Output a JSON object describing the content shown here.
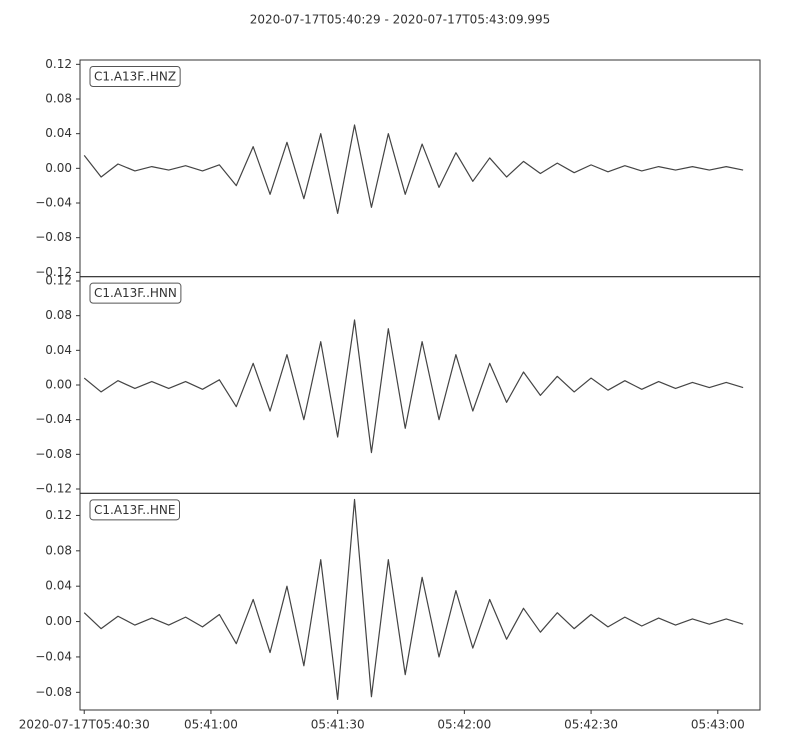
{
  "title": "2020-07-17T05:40:29  -  2020-07-17T05:43:09.995",
  "chart_data": [
    {
      "type": "line",
      "x": [
        "2020-07-17T05:40:30",
        "2020-07-17T05:40:34",
        "2020-07-17T05:40:38",
        "2020-07-17T05:40:42",
        "2020-07-17T05:40:46",
        "2020-07-17T05:40:50",
        "2020-07-17T05:40:54",
        "2020-07-17T05:40:58",
        "2020-07-17T05:41:02",
        "2020-07-17T05:41:06",
        "2020-07-17T05:41:10",
        "2020-07-17T05:41:14",
        "2020-07-17T05:41:18",
        "2020-07-17T05:41:22",
        "2020-07-17T05:41:26",
        "2020-07-17T05:41:30",
        "2020-07-17T05:41:34",
        "2020-07-17T05:41:38",
        "2020-07-17T05:41:42",
        "2020-07-17T05:41:46",
        "2020-07-17T05:41:50",
        "2020-07-17T05:41:54",
        "2020-07-17T05:41:58",
        "2020-07-17T05:42:02",
        "2020-07-17T05:42:06",
        "2020-07-17T05:42:10",
        "2020-07-17T05:42:14",
        "2020-07-17T05:42:18",
        "2020-07-17T05:42:22",
        "2020-07-17T05:42:26",
        "2020-07-17T05:42:30",
        "2020-07-17T05:42:34",
        "2020-07-17T05:42:38",
        "2020-07-17T05:42:42",
        "2020-07-17T05:42:46",
        "2020-07-17T05:42:50",
        "2020-07-17T05:42:54",
        "2020-07-17T05:42:58",
        "2020-07-17T05:43:02",
        "2020-07-17T05:43:06"
      ],
      "series": [
        {
          "name": "C1.A13F..HNZ",
          "color": "#444444",
          "values": [
            0.015,
            -0.01,
            0.005,
            -0.003,
            0.002,
            -0.002,
            0.003,
            -0.003,
            0.004,
            -0.02,
            0.025,
            -0.03,
            0.03,
            -0.035,
            0.04,
            -0.052,
            0.05,
            -0.045,
            0.04,
            -0.03,
            0.028,
            -0.022,
            0.018,
            -0.015,
            0.012,
            -0.01,
            0.008,
            -0.006,
            0.006,
            -0.005,
            0.004,
            -0.004,
            0.003,
            -0.003,
            0.002,
            -0.002,
            0.002,
            -0.002,
            0.002,
            -0.002
          ]
        }
      ],
      "xlim": [
        "2020-07-17T05:40:29",
        "2020-07-17T05:43:09.995"
      ],
      "ylim": [
        -0.125,
        0.125
      ],
      "yticks": [
        {
          "value": -0.12,
          "label": "−0.12"
        },
        {
          "value": -0.08,
          "label": "−0.08"
        },
        {
          "value": -0.04,
          "label": "−0.04"
        },
        {
          "value": 0,
          "label": "0.00"
        },
        0.04,
        0.08,
        0.12
      ]
    },
    {
      "type": "line",
      "x": [
        "2020-07-17T05:40:30",
        "2020-07-17T05:40:34",
        "2020-07-17T05:40:38",
        "2020-07-17T05:40:42",
        "2020-07-17T05:40:46",
        "2020-07-17T05:40:50",
        "2020-07-17T05:40:54",
        "2020-07-17T05:40:58",
        "2020-07-17T05:41:02",
        "2020-07-17T05:41:06",
        "2020-07-17T05:41:10",
        "2020-07-17T05:41:14",
        "2020-07-17T05:41:18",
        "2020-07-17T05:41:22",
        "2020-07-17T05:41:26",
        "2020-07-17T05:41:30",
        "2020-07-17T05:41:34",
        "2020-07-17T05:41:38",
        "2020-07-17T05:41:42",
        "2020-07-17T05:41:46",
        "2020-07-17T05:41:50",
        "2020-07-17T05:41:54",
        "2020-07-17T05:41:58",
        "2020-07-17T05:42:02",
        "2020-07-17T05:42:06",
        "2020-07-17T05:42:10",
        "2020-07-17T05:42:14",
        "2020-07-17T05:42:18",
        "2020-07-17T05:42:22",
        "2020-07-17T05:42:26",
        "2020-07-17T05:42:30",
        "2020-07-17T05:42:34",
        "2020-07-17T05:42:38",
        "2020-07-17T05:42:42",
        "2020-07-17T05:42:46",
        "2020-07-17T05:42:50",
        "2020-07-17T05:42:54",
        "2020-07-17T05:42:58",
        "2020-07-17T05:43:02",
        "2020-07-17T05:43:06"
      ],
      "series": [
        {
          "name": "C1.A13F..HNN",
          "color": "#444444",
          "values": [
            0.008,
            -0.008,
            0.005,
            -0.004,
            0.004,
            -0.004,
            0.004,
            -0.005,
            0.006,
            -0.025,
            0.025,
            -0.03,
            0.035,
            -0.04,
            0.05,
            -0.06,
            0.075,
            -0.078,
            0.065,
            -0.05,
            0.05,
            -0.04,
            0.035,
            -0.03,
            0.025,
            -0.02,
            0.015,
            -0.012,
            0.01,
            -0.008,
            0.008,
            -0.006,
            0.005,
            -0.005,
            0.004,
            -0.004,
            0.003,
            -0.003,
            0.003,
            -0.003
          ]
        }
      ],
      "xlim": [
        "2020-07-17T05:40:29",
        "2020-07-17T05:43:09.995"
      ],
      "ylim": [
        -0.125,
        0.125
      ],
      "yticks": [
        {
          "value": -0.12,
          "label": "−0.12"
        },
        {
          "value": -0.08,
          "label": "−0.08"
        },
        {
          "value": -0.04,
          "label": "−0.04"
        },
        {
          "value": 0,
          "label": "0.00"
        },
        0.04,
        0.08,
        0.12
      ]
    },
    {
      "type": "line",
      "x": [
        "2020-07-17T05:40:30",
        "2020-07-17T05:40:34",
        "2020-07-17T05:40:38",
        "2020-07-17T05:40:42",
        "2020-07-17T05:40:46",
        "2020-07-17T05:40:50",
        "2020-07-17T05:40:54",
        "2020-07-17T05:40:58",
        "2020-07-17T05:41:02",
        "2020-07-17T05:41:06",
        "2020-07-17T05:41:10",
        "2020-07-17T05:41:14",
        "2020-07-17T05:41:18",
        "2020-07-17T05:41:22",
        "2020-07-17T05:41:26",
        "2020-07-17T05:41:30",
        "2020-07-17T05:41:34",
        "2020-07-17T05:41:38",
        "2020-07-17T05:41:42",
        "2020-07-17T05:41:46",
        "2020-07-17T05:41:50",
        "2020-07-17T05:41:54",
        "2020-07-17T05:41:58",
        "2020-07-17T05:42:02",
        "2020-07-17T05:42:06",
        "2020-07-17T05:42:10",
        "2020-07-17T05:42:14",
        "2020-07-17T05:42:18",
        "2020-07-17T05:42:22",
        "2020-07-17T05:42:26",
        "2020-07-17T05:42:30",
        "2020-07-17T05:42:34",
        "2020-07-17T05:42:38",
        "2020-07-17T05:42:42",
        "2020-07-17T05:42:46",
        "2020-07-17T05:42:50",
        "2020-07-17T05:42:54",
        "2020-07-17T05:42:58",
        "2020-07-17T05:43:02",
        "2020-07-17T05:43:06"
      ],
      "series": [
        {
          "name": "C1.A13F..HNE",
          "color": "#444444",
          "values": [
            0.01,
            -0.008,
            0.006,
            -0.004,
            0.004,
            -0.004,
            0.005,
            -0.006,
            0.008,
            -0.025,
            0.025,
            -0.035,
            0.04,
            -0.05,
            0.07,
            -0.088,
            0.138,
            -0.085,
            0.07,
            -0.06,
            0.05,
            -0.04,
            0.035,
            -0.03,
            0.025,
            -0.02,
            0.015,
            -0.012,
            0.01,
            -0.008,
            0.008,
            -0.006,
            0.005,
            -0.005,
            0.004,
            -0.004,
            0.003,
            -0.003,
            0.003,
            -0.003
          ]
        }
      ],
      "xlim": [
        "2020-07-17T05:40:29",
        "2020-07-17T05:43:09.995"
      ],
      "ylim": [
        -0.1,
        0.145
      ],
      "yticks": [
        {
          "value": -0.08,
          "label": "−0.08"
        },
        {
          "value": -0.04,
          "label": "−0.04"
        },
        {
          "value": 0,
          "label": "0.00"
        },
        0.04,
        0.08,
        0.12
      ],
      "xticks": [
        {
          "value": "2020-07-17T05:40:30",
          "label": "2020-07-17T05:40:30"
        },
        {
          "value": "2020-07-17T05:41:00",
          "label": "05:41:00"
        },
        {
          "value": "2020-07-17T05:41:30",
          "label": "05:41:30"
        },
        {
          "value": "2020-07-17T05:42:00",
          "label": "05:42:00"
        },
        {
          "value": "2020-07-17T05:42:30",
          "label": "05:42:30"
        },
        {
          "value": "2020-07-17T05:43:00",
          "label": "05:43:00"
        }
      ]
    }
  ]
}
